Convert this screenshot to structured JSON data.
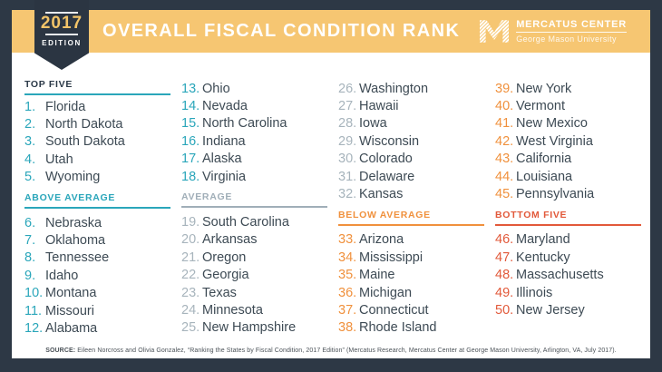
{
  "edition": {
    "year": "2017",
    "label": "EDITION"
  },
  "title": "OVERALL FISCAL CONDITION RANK",
  "logo": {
    "icon": "mercatus-m-logo",
    "org": "MERCATUS CENTER",
    "university": "George Mason University"
  },
  "colors": {
    "frame": "#2d3845",
    "band": "#f6c672",
    "badge": "#2b3542",
    "card": "#ffffff",
    "title_text": "#ffffff",
    "state_text": "#3d4a54",
    "footer_text": "#4b5258"
  },
  "tiers": {
    "top": {
      "number": "#2aa6ba",
      "header_text": "#2b3947",
      "rule": "#2aa6ba"
    },
    "above": {
      "number": "#2aa6ba",
      "header_text": "#2aa6ba",
      "rule": "#2aa6ba"
    },
    "average": {
      "number": "#a7b4bc",
      "header_text": "#a0aeb8",
      "rule": "#a0aeb8"
    },
    "below": {
      "number": "#f0913d",
      "header_text": "#f0913d",
      "rule": "#f0913d"
    },
    "bottom": {
      "number": "#e2593a",
      "header_text": "#e2593a",
      "rule": "#e2593a"
    }
  },
  "columns": [
    {
      "segments": [
        {
          "header": {
            "label": "TOP FIVE",
            "tier": "top",
            "first": true
          },
          "items": [
            {
              "rank": "1.",
              "state": "Florida",
              "tier": "top"
            },
            {
              "rank": "2.",
              "state": "North Dakota",
              "tier": "top"
            },
            {
              "rank": "3.",
              "state": "South Dakota",
              "tier": "top"
            },
            {
              "rank": "4.",
              "state": "Utah",
              "tier": "top"
            },
            {
              "rank": "5.",
              "state": "Wyoming",
              "tier": "top"
            }
          ]
        },
        {
          "header": {
            "label": "ABOVE AVERAGE",
            "tier": "above"
          },
          "items": [
            {
              "rank": "6.",
              "state": "Nebraska",
              "tier": "above"
            },
            {
              "rank": "7.",
              "state": "Oklahoma",
              "tier": "above"
            },
            {
              "rank": "8.",
              "state": "Tennessee",
              "tier": "above"
            },
            {
              "rank": "9.",
              "state": "Idaho",
              "tier": "above"
            },
            {
              "rank": "10.",
              "state": "Montana",
              "tier": "above"
            },
            {
              "rank": "11.",
              "state": "Missouri",
              "tier": "above"
            },
            {
              "rank": "12.",
              "state": "Alabama",
              "tier": "above"
            }
          ]
        }
      ]
    },
    {
      "segments": [
        {
          "header": null,
          "items": [
            {
              "rank": "13.",
              "state": "Ohio",
              "tier": "above"
            },
            {
              "rank": "14.",
              "state": "Nevada",
              "tier": "above"
            },
            {
              "rank": "15.",
              "state": "North Carolina",
              "tier": "above"
            },
            {
              "rank": "16.",
              "state": "Indiana",
              "tier": "above"
            },
            {
              "rank": "17.",
              "state": "Alaska",
              "tier": "above"
            },
            {
              "rank": "18.",
              "state": "Virginia",
              "tier": "above"
            }
          ]
        },
        {
          "header": {
            "label": "AVERAGE",
            "tier": "average"
          },
          "items": [
            {
              "rank": "19.",
              "state": "South Carolina",
              "tier": "average"
            },
            {
              "rank": "20.",
              "state": "Arkansas",
              "tier": "average"
            },
            {
              "rank": "21.",
              "state": "Oregon",
              "tier": "average"
            },
            {
              "rank": "22.",
              "state": "Georgia",
              "tier": "average"
            },
            {
              "rank": "23.",
              "state": "Texas",
              "tier": "average"
            },
            {
              "rank": "24.",
              "state": "Minnesota",
              "tier": "average"
            },
            {
              "rank": "25.",
              "state": "New Hampshire",
              "tier": "average"
            }
          ]
        }
      ]
    },
    {
      "segments": [
        {
          "header": null,
          "items": [
            {
              "rank": "26.",
              "state": "Washington",
              "tier": "average"
            },
            {
              "rank": "27.",
              "state": "Hawaii",
              "tier": "average"
            },
            {
              "rank": "28.",
              "state": "Iowa",
              "tier": "average"
            },
            {
              "rank": "29.",
              "state": "Wisconsin",
              "tier": "average"
            },
            {
              "rank": "30.",
              "state": "Colorado",
              "tier": "average"
            },
            {
              "rank": "31.",
              "state": "Delaware",
              "tier": "average"
            },
            {
              "rank": "32.",
              "state": "Kansas",
              "tier": "average"
            }
          ]
        },
        {
          "header": {
            "label": "BELOW AVERAGE",
            "tier": "below"
          },
          "items": [
            {
              "rank": "33.",
              "state": "Arizona",
              "tier": "below"
            },
            {
              "rank": "34.",
              "state": "Mississippi",
              "tier": "below"
            },
            {
              "rank": "35.",
              "state": "Maine",
              "tier": "below"
            },
            {
              "rank": "36.",
              "state": "Michigan",
              "tier": "below"
            },
            {
              "rank": "37.",
              "state": "Connecticut",
              "tier": "below"
            },
            {
              "rank": "38.",
              "state": "Rhode Island",
              "tier": "below"
            }
          ]
        }
      ]
    },
    {
      "segments": [
        {
          "header": null,
          "items": [
            {
              "rank": "39.",
              "state": "New York",
              "tier": "below"
            },
            {
              "rank": "40.",
              "state": "Vermont",
              "tier": "below"
            },
            {
              "rank": "41.",
              "state": "New Mexico",
              "tier": "below"
            },
            {
              "rank": "42.",
              "state": "West Virginia",
              "tier": "below"
            },
            {
              "rank": "43.",
              "state": "California",
              "tier": "below"
            },
            {
              "rank": "44.",
              "state": "Louisiana",
              "tier": "below"
            },
            {
              "rank": "45.",
              "state": "Pennsylvania",
              "tier": "below"
            }
          ]
        },
        {
          "header": {
            "label": "BOTTOM FIVE",
            "tier": "bottom"
          },
          "items": [
            {
              "rank": "46.",
              "state": "Maryland",
              "tier": "bottom"
            },
            {
              "rank": "47.",
              "state": "Kentucky",
              "tier": "bottom"
            },
            {
              "rank": "48.",
              "state": "Massachusetts",
              "tier": "bottom"
            },
            {
              "rank": "49.",
              "state": "Illinois",
              "tier": "bottom"
            },
            {
              "rank": "50.",
              "state": "New Jersey",
              "tier": "bottom"
            }
          ]
        }
      ]
    }
  ],
  "footer": {
    "source_label": "SOURCE:",
    "source_text": " Eileen Norcross and Olivia Gonzalez, “Ranking the States by Fiscal Condition, 2017 Edition” (Mercatus Research, Mercatus Center at George Mason University, Arlington, VA, July 2017)."
  }
}
